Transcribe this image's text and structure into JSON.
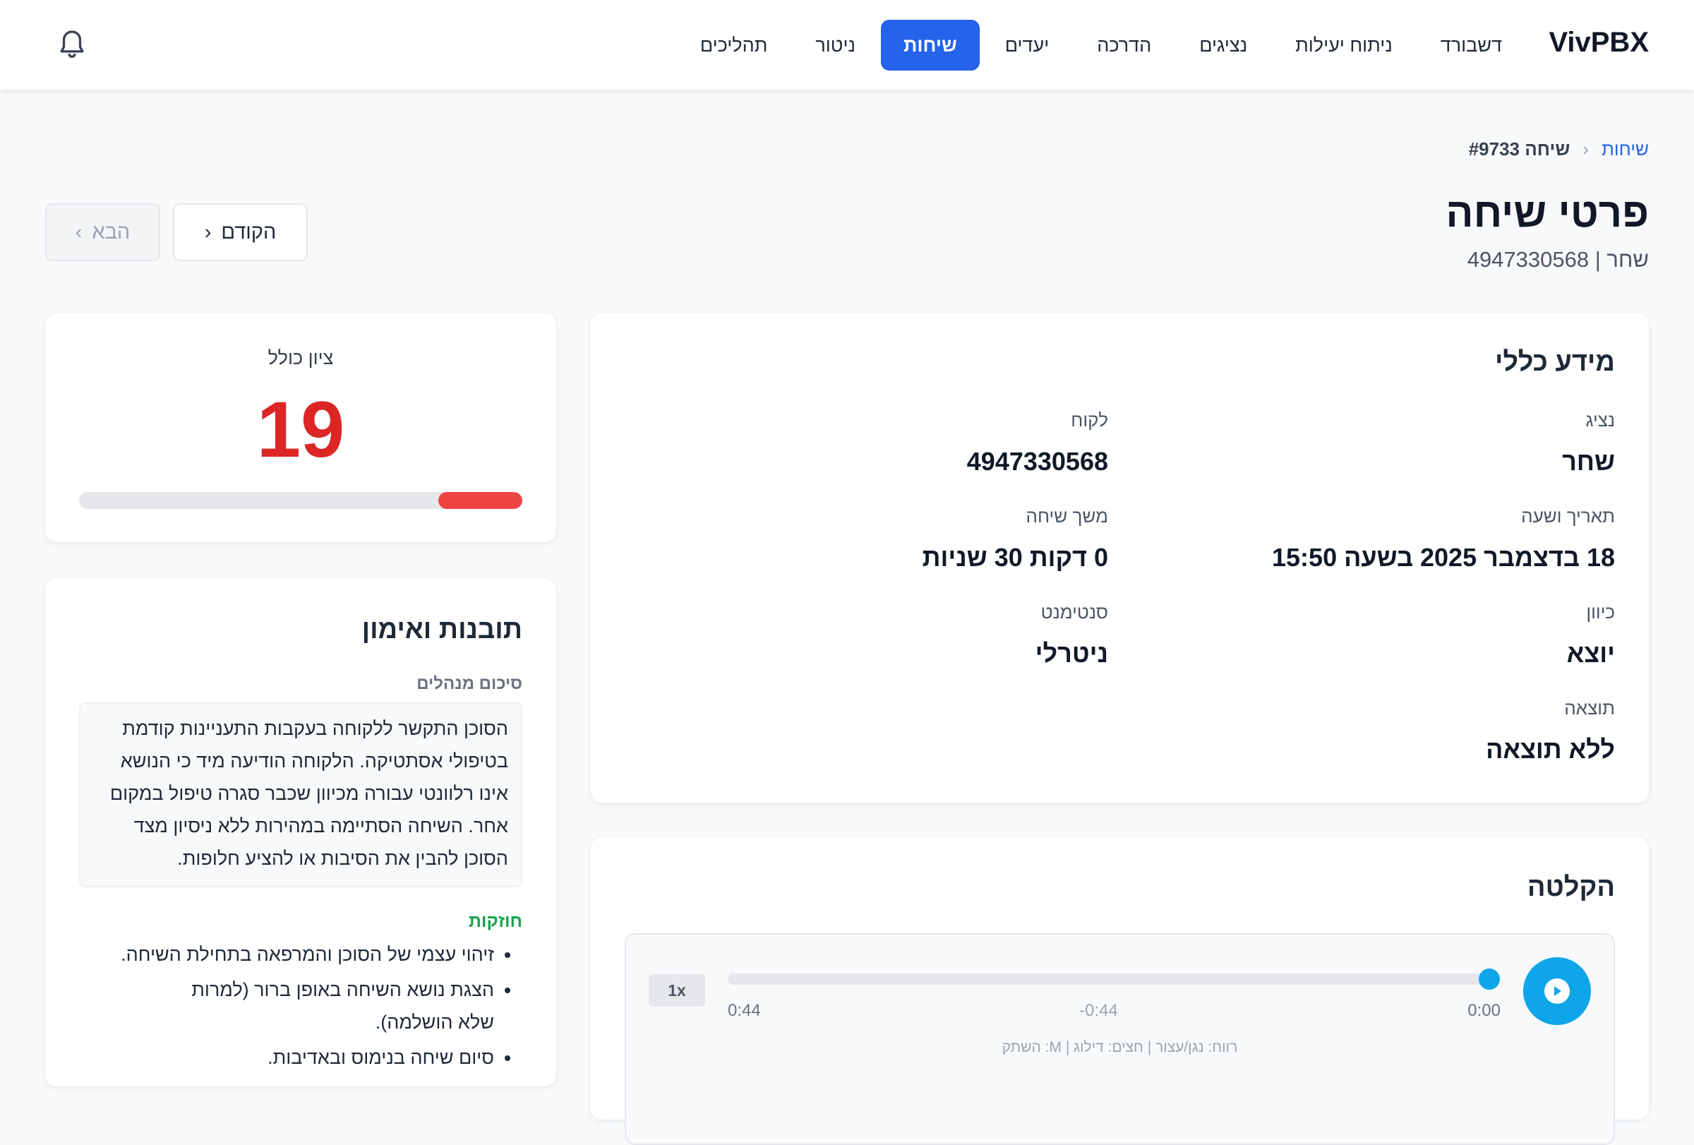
{
  "nav": {
    "logo": "VivPBX",
    "items": [
      "דשבורד",
      "ניתוח יעילות",
      "נציגים",
      "הדרכה",
      "יעדים",
      "שיחות",
      "ניטור",
      "תהליכים"
    ],
    "active": "שיחות"
  },
  "breadcrumb": {
    "parent": "שיחות",
    "current": "שיחה #9733"
  },
  "header": {
    "title": "פרטי שיחה",
    "subtitle": "שחר | 4947330568",
    "prev": "הקודם",
    "next": "הבא"
  },
  "info": {
    "title": "מידע כללי",
    "fields": [
      {
        "label": "נציג",
        "value": "שחר"
      },
      {
        "label": "לקוח",
        "value": "4947330568"
      },
      {
        "label": "תאריך ושעה",
        "value": "18 בדצמבר 2025 בשעה 15:50"
      },
      {
        "label": "משך שיחה",
        "value": "0 דקות 30 שניות"
      },
      {
        "label": "כיוון",
        "value": "יוצא"
      },
      {
        "label": "סנטימנט",
        "value": "ניטרלי"
      },
      {
        "label": "תוצאה",
        "value": "ללא תוצאה"
      }
    ]
  },
  "score": {
    "label": "ציון כולל",
    "value": "19",
    "percent": 19,
    "color": "#ef4444"
  },
  "insights": {
    "title": "תובנות ואימון",
    "summary_label": "סיכום מנהלים",
    "summary": "הסוכן התקשר ללקוחה בעקבות התעניינות קודמת בטיפולי אסתטיקה. הלקוחה הודיעה מיד כי הנושא אינו רלוונטי עבורה מכיוון שכבר סגרה טיפול במקום אחר. השיחה הסתיימה במהירות ללא ניסיון מצד הסוכן להבין את הסיבות או להציע חלופות.",
    "strengths_label": "חוזקות",
    "strengths": [
      "זיהוי עצמי של הסוכן והמרפאה בתחילת השיחה.",
      "הצגת נושא השיחה באופן ברור (למרות שלא הושלמה).",
      "סיום שיחה בנימוס ובאדיבות."
    ]
  },
  "recording": {
    "title": "הקלטה",
    "current": "0:00",
    "remaining": "-0:44",
    "duration": "0:44",
    "speed": "1x",
    "progress": 0,
    "hint": "רווח: נגן/עצור | חצים: דילוג | M: השתק"
  },
  "colors": {
    "accent": "#2563eb",
    "player": "#0ea5e9",
    "strength": "#16a34a"
  }
}
